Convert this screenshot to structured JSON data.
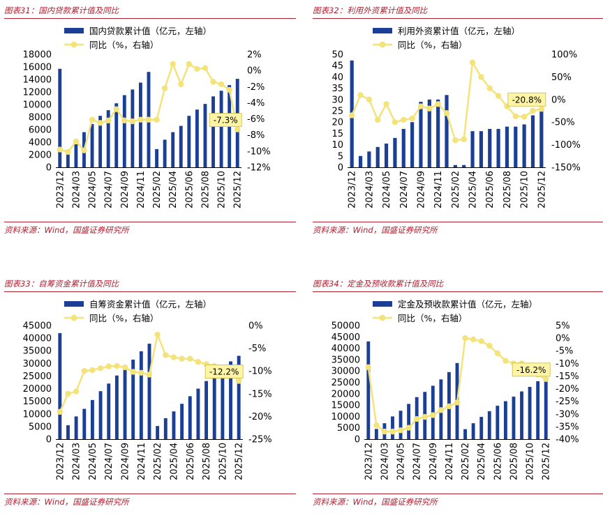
{
  "colors": {
    "bar": "#1a3f95",
    "line": "#f3e37a",
    "marker": "#f3e37a",
    "accent": "#b02030",
    "callout_bg": "#fdf4a6"
  },
  "source_text": "资料来源：Wind，国盛证券研究所",
  "charts": [
    {
      "title": "图表31：国内贷款累计值及同比",
      "source": "资料来源：Wind，国盛证券研究所",
      "chart_data": {
        "type": "bar",
        "title": "国内贷款累计值及同比",
        "categories": [
          "2023/12",
          "2024/02",
          "2024/03",
          "2024/04",
          "2024/05",
          "2024/06",
          "2024/07",
          "2024/08",
          "2024/09",
          "2024/10",
          "2024/11",
          "2024/12",
          "2025/02",
          "2025/03",
          "2025/04",
          "2025/05",
          "2025/06",
          "2025/07",
          "2025/08",
          "2025/09",
          "2025/10",
          "2025/11",
          "2025/12"
        ],
        "tick_labels": [
          "2023/12",
          "",
          "2024/03",
          "",
          "2024/05",
          "",
          "2024/07",
          "",
          "2024/09",
          "",
          "2024/11",
          "",
          "2025/02",
          "",
          "2025/04",
          "",
          "2025/06",
          "",
          "2025/08",
          "",
          "2025/10",
          "",
          "2025/12"
        ],
        "series": [
          {
            "name": "国内贷款累计值（亿元，左轴）",
            "axis": "left",
            "type": "bar",
            "values": [
              15700,
              2600,
              4400,
              5600,
              6900,
              8200,
              9100,
              10200,
              11500,
              12400,
              13500,
              15200,
              2900,
              4400,
              5600,
              6600,
              8200,
              9200,
              10100,
              11300,
              12200,
              13100,
              14100
            ]
          },
          {
            "name": "同比（%，右轴）",
            "axis": "right",
            "type": "line",
            "values": [
              -9.8,
              -10.1,
              -8.8,
              -9.9,
              -6.1,
              -6.5,
              -6.2,
              -4.8,
              -6.2,
              -6.3,
              -6.1,
              -6.1,
              -6.1,
              -2.2,
              0.8,
              -1.7,
              0.8,
              0.2,
              0.3,
              -1.4,
              -1.7,
              -2.4,
              -7.3
            ]
          }
        ],
        "ylim_left": [
          0,
          18000
        ],
        "yticks_left": [
          0,
          2000,
          4000,
          6000,
          8000,
          10000,
          12000,
          14000,
          16000,
          18000
        ],
        "ylim_right": [
          -12,
          2
        ],
        "yticks_right": [
          -12,
          -10,
          -8,
          -6,
          -4,
          -2,
          0,
          2
        ],
        "right_suffix": "%",
        "callout": "-7.3%"
      }
    },
    {
      "title": "图表32：利用外资累计值及同比",
      "source": "资料来源：Wind，国盛证券研究所",
      "chart_data": {
        "type": "bar",
        "title": "利用外资累计值及同比",
        "categories": [
          "2023/12",
          "2024/02",
          "2024/03",
          "2024/04",
          "2024/05",
          "2024/06",
          "2024/07",
          "2024/08",
          "2024/09",
          "2024/10",
          "2024/11",
          "2024/12",
          "2025/02",
          "2025/03",
          "2025/04",
          "2025/05",
          "2025/06",
          "2025/07",
          "2025/08",
          "2025/09",
          "2025/10",
          "2025/11",
          "2025/12"
        ],
        "tick_labels": [
          "2023/12",
          "",
          "2024/03",
          "",
          "2024/05",
          "",
          "2024/07",
          "",
          "2024/09",
          "",
          "2024/11",
          "",
          "2025/02",
          "",
          "2025/04",
          "",
          "2025/06",
          "",
          "2025/08",
          "",
          "2025/10",
          "",
          "2025/12"
        ],
        "series": [
          {
            "name": "利用外资累计值（亿元，左轴）",
            "axis": "left",
            "type": "bar",
            "values": [
              47.3,
              5,
              7,
              9,
              10.5,
              13,
              17,
              20,
              29,
              30,
              30,
              32,
              1,
              1,
              16,
              16,
              17,
              17,
              18,
              18,
              19,
              23,
              26
            ]
          },
          {
            "name": "同比（%，右轴）",
            "axis": "right",
            "type": "line",
            "values": [
              -35,
              10,
              0,
              -45,
              -10,
              -50,
              -45,
              -42,
              -15,
              -20,
              -10,
              -30,
              -90,
              -88,
              82,
              50,
              25,
              8,
              -15,
              -37,
              -38,
              -25,
              -20.8
            ]
          }
        ],
        "ylim_left": [
          0,
          50
        ],
        "yticks_left": [
          0,
          5,
          10,
          15,
          20,
          25,
          30,
          35,
          40,
          45,
          50
        ],
        "ylim_right": [
          -150,
          100
        ],
        "yticks_right": [
          -150,
          -100,
          -50,
          0,
          50,
          100
        ],
        "right_suffix": "%",
        "callout": "-20.8%"
      }
    },
    {
      "title": "图表33：自筹资金累计值及同比",
      "source": "资料来源：Wind，国盛证券研究所",
      "chart_data": {
        "type": "bar",
        "title": "自筹资金累计值及同比",
        "categories": [
          "2023/12",
          "2024/02",
          "2024/03",
          "2024/04",
          "2024/05",
          "2024/06",
          "2024/07",
          "2024/08",
          "2024/09",
          "2024/10",
          "2024/11",
          "2024/12",
          "2025/02",
          "2025/03",
          "2025/04",
          "2025/05",
          "2025/06",
          "2025/07",
          "2025/08",
          "2025/09",
          "2025/10",
          "2025/11",
          "2025/12"
        ],
        "tick_labels": [
          "2023/12",
          "",
          "2024/03",
          "",
          "2024/05",
          "",
          "2024/07",
          "",
          "2024/09",
          "",
          "2024/11",
          "",
          "2025/02",
          "",
          "2025/04",
          "",
          "2025/06",
          "",
          "2025/08",
          "",
          "2025/10",
          "",
          "2025/12"
        ],
        "series": [
          {
            "name": "自筹资金累计值（亿元，左轴）",
            "axis": "left",
            "type": "bar",
            "values": [
              42000,
              5500,
              9000,
              12000,
              15500,
              19000,
              22000,
              25200,
              28000,
              31500,
              34800,
              37800,
              5200,
              8300,
              11000,
              14000,
              17000,
              20000,
              23000,
              25500,
              27500,
              30800,
              33000
            ]
          },
          {
            "name": "同比（%，右轴）",
            "axis": "right",
            "type": "line",
            "values": [
              -19,
              -15,
              -14.5,
              -10,
              -9.8,
              -9.4,
              -9,
              -8.9,
              -9.2,
              -10.2,
              -10.4,
              -10.8,
              -2,
              -6.5,
              -7,
              -7.3,
              -7.3,
              -8,
              -8.5,
              -8.9,
              -9.4,
              -10.3,
              -12.2
            ]
          }
        ],
        "ylim_left": [
          0,
          45000
        ],
        "yticks_left": [
          0,
          5000,
          10000,
          15000,
          20000,
          25000,
          30000,
          35000,
          40000,
          45000
        ],
        "ylim_right": [
          -25,
          0
        ],
        "yticks_right": [
          -25,
          -20,
          -15,
          -10,
          -5,
          0
        ],
        "right_suffix": "%",
        "callout": "-12.2%"
      }
    },
    {
      "title": "图表34：定金及预收款累计值及同比",
      "source": "资料来源：Wind，国盛证券研究所",
      "chart_data": {
        "type": "bar",
        "title": "定金及预收款累计值及同比",
        "categories": [
          "2023/12",
          "2024/02",
          "2024/03",
          "2024/04",
          "2024/05",
          "2024/06",
          "2024/07",
          "2024/08",
          "2024/09",
          "2024/10",
          "2024/11",
          "2024/12",
          "2025/02",
          "2025/03",
          "2025/04",
          "2025/05",
          "2025/06",
          "2025/07",
          "2025/08",
          "2025/09",
          "2025/10",
          "2025/11",
          "2025/12"
        ],
        "tick_labels": [
          "2023/12",
          "",
          "2024/03",
          "",
          "2024/05",
          "",
          "2024/07",
          "",
          "2024/09",
          "",
          "2024/11",
          "",
          "2025/02",
          "",
          "2025/04",
          "",
          "2025/06",
          "",
          "2025/08",
          "",
          "2025/10",
          "",
          "2025/12"
        ],
        "series": [
          {
            "name": "定金及预收款累计值（亿元，左轴）",
            "axis": "left",
            "type": "bar",
            "values": [
              43000,
              4500,
              7000,
              10000,
              12500,
              15500,
              18500,
              20800,
              23500,
              26300,
              29500,
              33500,
              4400,
              7000,
              9800,
              12300,
              14700,
              16700,
              18700,
              21000,
              23000,
              25500,
              27000
            ]
          },
          {
            "name": "同比（%，右轴）",
            "axis": "right",
            "type": "line",
            "values": [
              -11.5,
              -34.5,
              -37,
              -37,
              -36.5,
              -35.5,
              -32,
              -31.2,
              -30.5,
              -28.5,
              -27,
              -25.5,
              0,
              -0.5,
              -1.2,
              -3,
              -6,
              -9,
              -10,
              -10,
              -11,
              -14.5,
              -16.2
            ]
          }
        ],
        "ylim_left": [
          0,
          50000
        ],
        "yticks_left": [
          0,
          5000,
          10000,
          15000,
          20000,
          25000,
          30000,
          35000,
          40000,
          45000,
          50000
        ],
        "ylim_right": [
          -40,
          5
        ],
        "yticks_right": [
          -40,
          -35,
          -30,
          -25,
          -20,
          -15,
          -10,
          -5,
          0,
          5
        ],
        "right_suffix": "%",
        "callout": "-16.2%"
      }
    }
  ]
}
